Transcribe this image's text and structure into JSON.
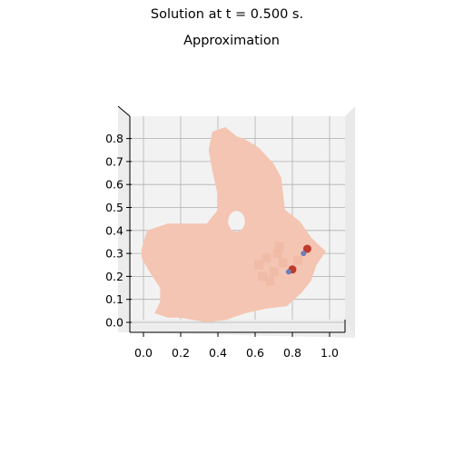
{
  "figure": {
    "suptitle": "Solution at t = 0.500 s.",
    "subtitle": "Approximation"
  },
  "chart_data": {
    "type": "heatmap",
    "projection": "3d-surface-top-view",
    "title": "Approximation",
    "suptitle": "Solution at t = 0.500 s.",
    "xlabel": "",
    "ylabel": "",
    "xlim": [
      -0.05,
      1.05
    ],
    "ylim": [
      -0.05,
      0.85
    ],
    "x_ticks": [
      0.0,
      0.2,
      0.4,
      0.6,
      0.8,
      1.0
    ],
    "x_tick_labels": [
      "0.0",
      "0.2",
      "0.4",
      "0.6",
      "0.8",
      "1.0"
    ],
    "y_ticks": [
      0.0,
      0.1,
      0.2,
      0.3,
      0.4,
      0.5,
      0.6,
      0.7,
      0.8
    ],
    "y_tick_labels": [
      "0.0",
      "0.1",
      "0.2",
      "0.3",
      "0.4",
      "0.5",
      "0.6",
      "0.7",
      "0.8"
    ],
    "grid": true,
    "colormap": "RdBu_r",
    "colors": {
      "surface": "#f4c5b2",
      "pane": "#f2f2f2",
      "grid": "#b0b0b0",
      "hot": "#c0392b",
      "cold": "#6d7fb8"
    },
    "domain_boundary": [
      [
        0.37,
        0.83
      ],
      [
        0.44,
        0.85
      ],
      [
        0.5,
        0.81
      ],
      [
        0.54,
        0.8
      ],
      [
        0.62,
        0.76
      ],
      [
        0.7,
        0.69
      ],
      [
        0.74,
        0.63
      ],
      [
        0.76,
        0.49
      ],
      [
        0.84,
        0.44
      ],
      [
        0.9,
        0.37
      ],
      [
        0.95,
        0.33
      ],
      [
        0.98,
        0.31
      ],
      [
        0.93,
        0.25
      ],
      [
        0.9,
        0.18
      ],
      [
        0.85,
        0.13
      ],
      [
        0.77,
        0.07
      ],
      [
        0.66,
        0.06
      ],
      [
        0.55,
        0.04
      ],
      [
        0.44,
        0.01
      ],
      [
        0.34,
        0.0
      ],
      [
        0.2,
        0.02
      ],
      [
        0.13,
        0.02
      ],
      [
        0.06,
        0.04
      ],
      [
        0.09,
        0.09
      ],
      [
        0.09,
        0.15
      ],
      [
        0.04,
        0.21
      ],
      [
        -0.01,
        0.28
      ],
      [
        -0.01,
        0.32
      ],
      [
        0.02,
        0.4
      ],
      [
        0.13,
        0.43
      ],
      [
        0.25,
        0.43
      ],
      [
        0.34,
        0.43
      ],
      [
        0.4,
        0.49
      ],
      [
        0.4,
        0.55
      ],
      [
        0.37,
        0.66
      ],
      [
        0.35,
        0.75
      ]
    ],
    "holes": [
      {
        "center": [
          0.5,
          0.44
        ],
        "radius_x": 0.045,
        "radius_y": 0.045
      }
    ],
    "features": [
      {
        "x": 0.8,
        "y": 0.23,
        "value": "high"
      },
      {
        "x": 0.78,
        "y": 0.22,
        "value": "low"
      },
      {
        "x": 0.88,
        "y": 0.32,
        "value": "high"
      },
      {
        "x": 0.86,
        "y": 0.3,
        "value": "low"
      }
    ]
  }
}
